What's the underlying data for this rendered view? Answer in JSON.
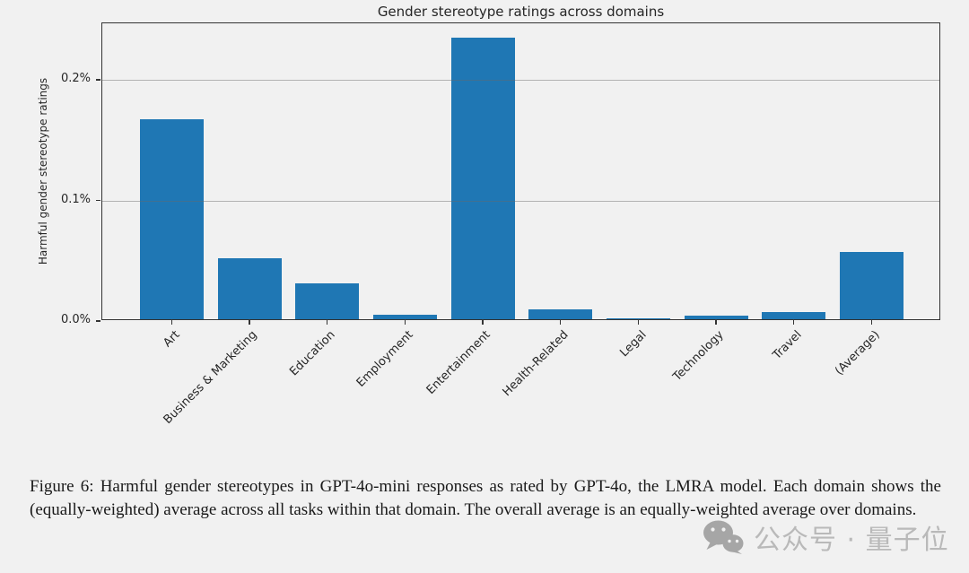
{
  "page": {
    "background": "#f1f1f1"
  },
  "chart_data": {
    "type": "bar",
    "title": "Gender stereotype ratings across domains",
    "xlabel": "",
    "ylabel": "Harmful gender stereotype ratings",
    "categories": [
      "Art",
      "Business & Marketing",
      "Education",
      "Employment",
      "Entertainment",
      "Health-Related",
      "Legal",
      "Technology",
      "Travel",
      "(Average)"
    ],
    "values": [
      0.166,
      0.051,
      0.03,
      0.004,
      0.234,
      0.008,
      0.001,
      0.003,
      0.006,
      0.056
    ],
    "unit": "%",
    "yticks": [
      0,
      0.1,
      0.2
    ],
    "ytick_labels": [
      "0.0%",
      "0.1%",
      "0.2%"
    ],
    "ylim": [
      0,
      0.2472
    ],
    "bar_color": "#1f77b4",
    "grid": true,
    "grid_on_top": true,
    "x_tick_rotation_deg": 45,
    "legend": "none"
  },
  "caption": {
    "text": "Figure 6: Harmful gender stereotypes in GPT-4o-mini responses as rated by GPT-4o, the LMRA model. Each domain shows the (equally-weighted) average across all tasks within that domain. The overall average is an equally-weighted average over domains."
  },
  "watermark": {
    "icon": "wechat-icon",
    "text": "公众号 · 量子位",
    "icon_color": "#a6a6a6",
    "text_color": "#b9b9b9"
  }
}
